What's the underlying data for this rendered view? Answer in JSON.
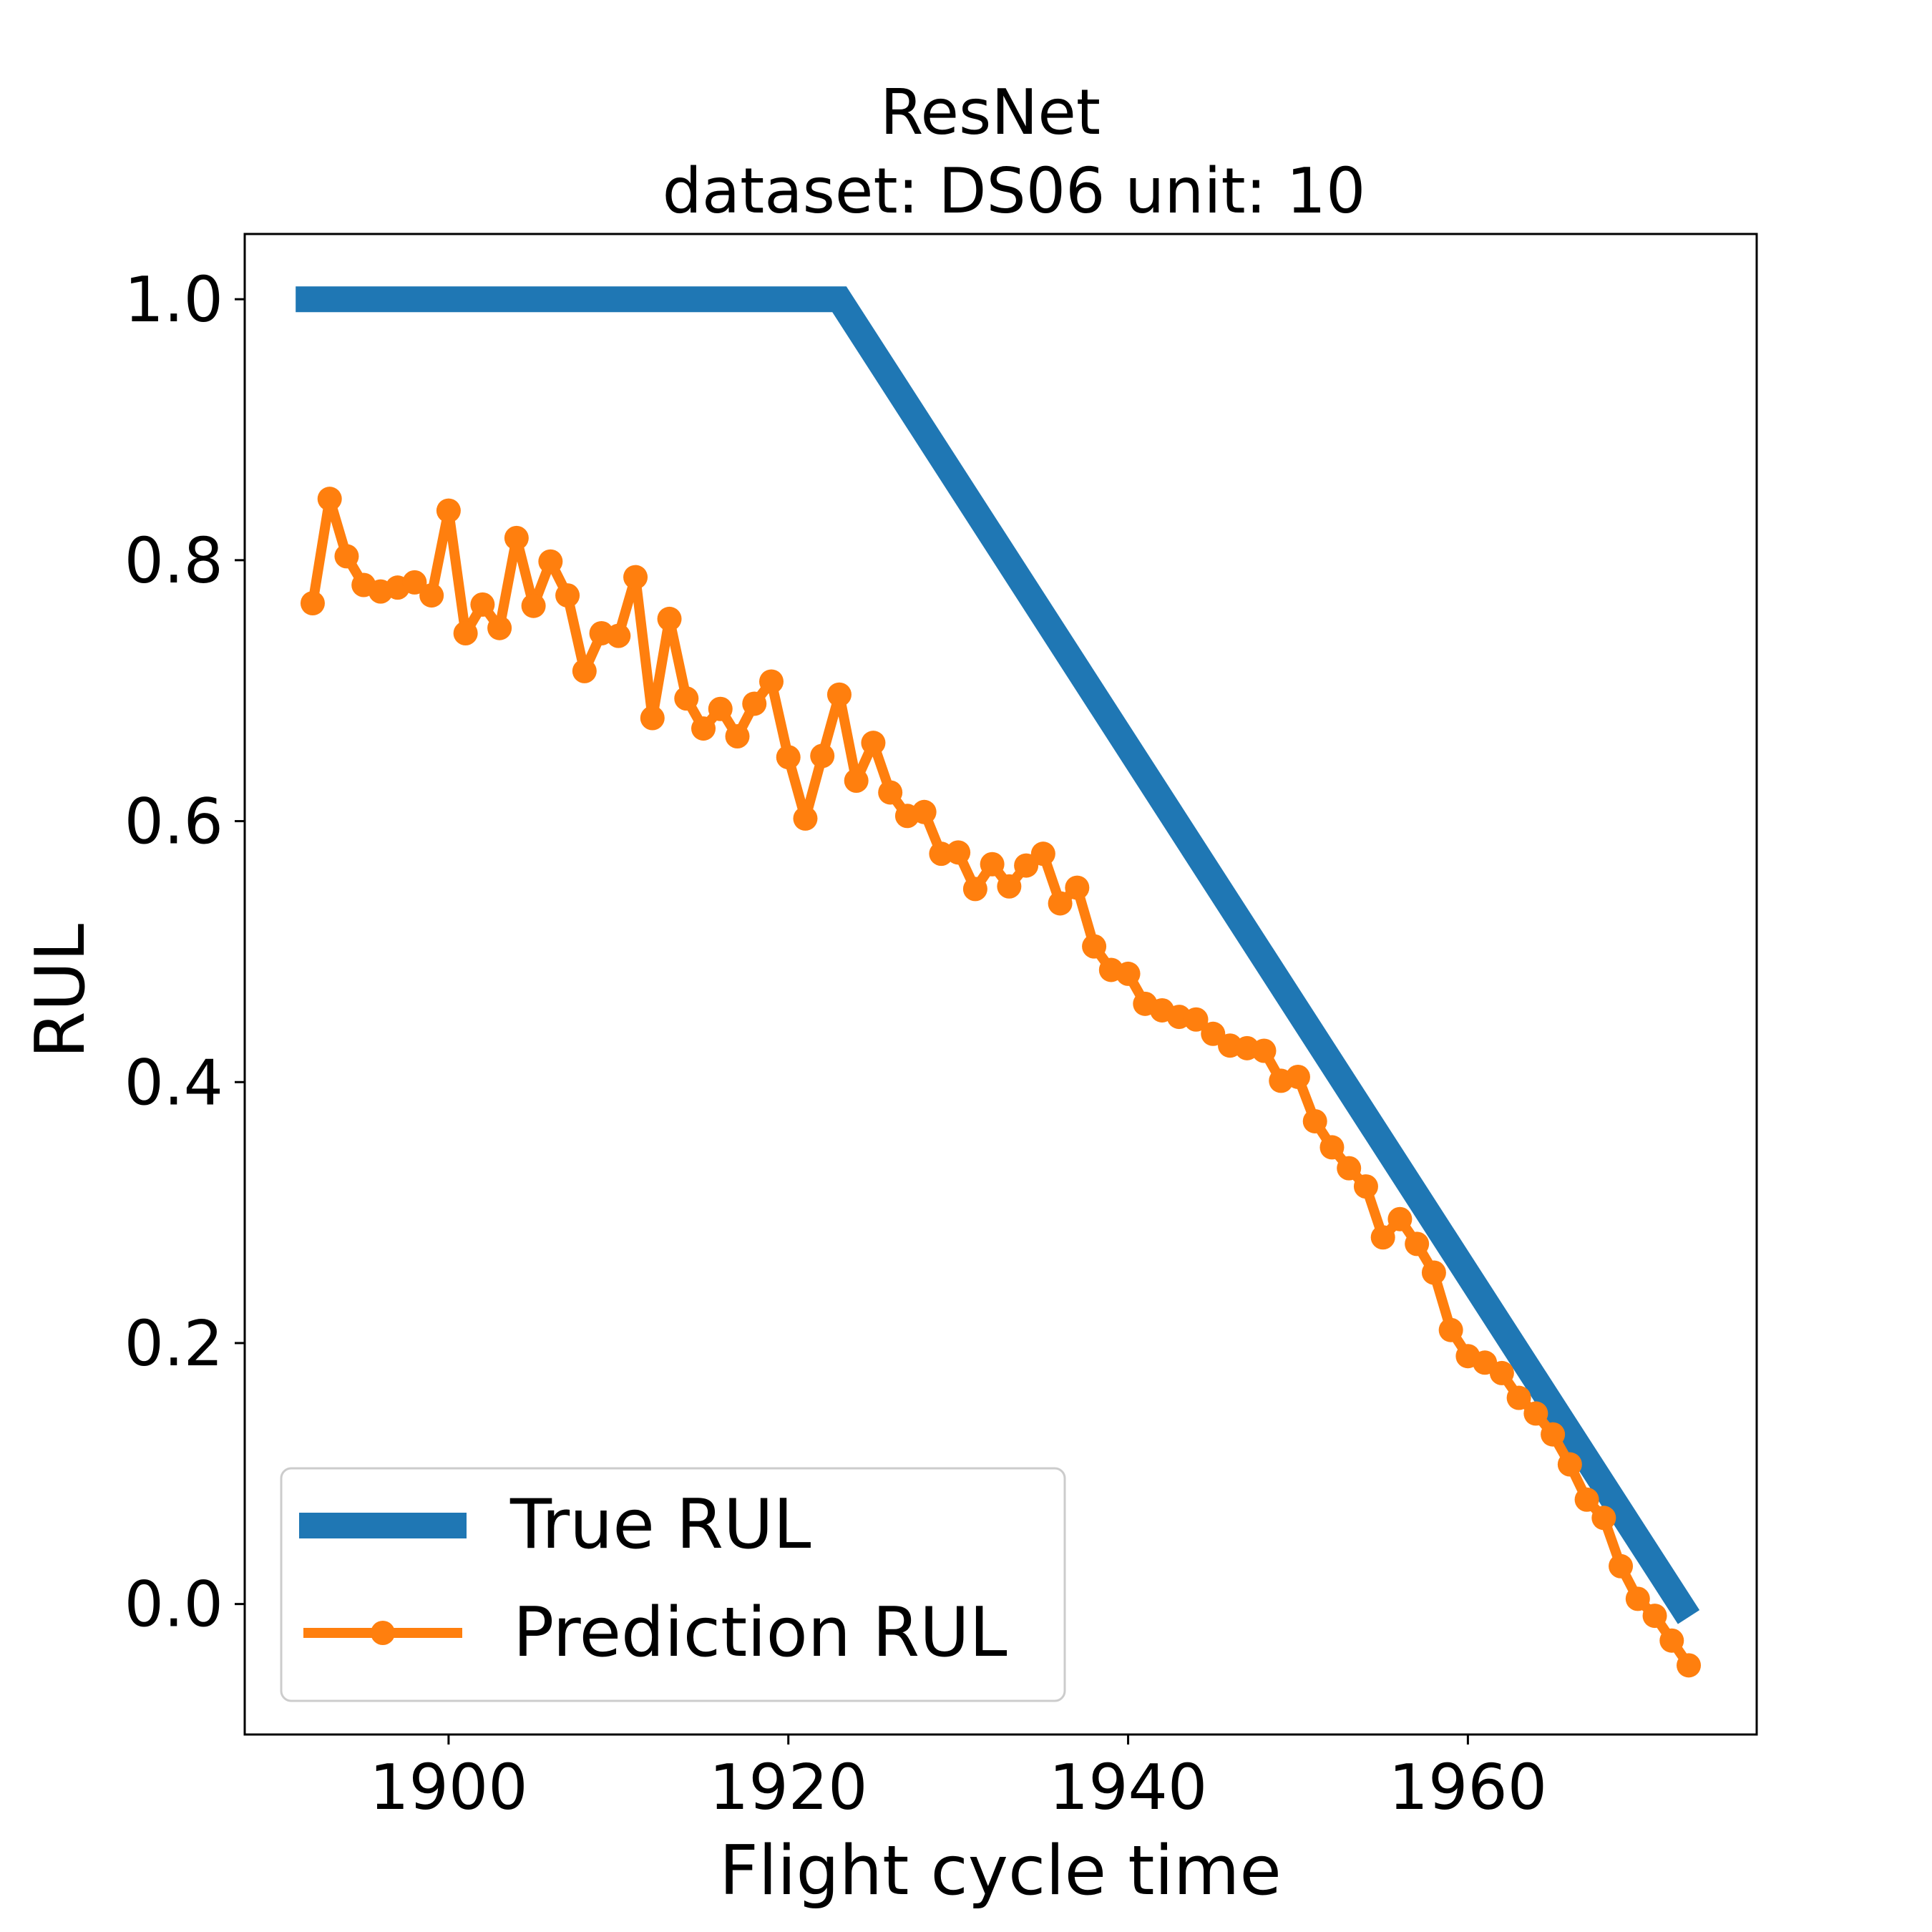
{
  "chart_data": {
    "type": "line",
    "title": "ResNet",
    "subtitle": "dataset: DS06 unit: 10",
    "xlabel": "Flight cycle time",
    "ylabel": "RUL",
    "xlim": [
      1888,
      1977
    ],
    "ylim": [
      -0.1,
      1.05
    ],
    "xticks": [
      1900,
      1920,
      1940,
      1960
    ],
    "xtick_labels": [
      "1900",
      "1920",
      "1940",
      "1960"
    ],
    "yticks": [
      0.0,
      0.2,
      0.4,
      0.6,
      0.8,
      1.0
    ],
    "ytick_labels": [
      "0.0",
      "0.2",
      "0.4",
      "0.6",
      "0.8",
      "1.0"
    ],
    "grid": false,
    "legend_position": "lower-left",
    "series": [
      {
        "name": "True RUL",
        "color": "#1f77b4",
        "marker": "none",
        "x": [
          1891,
          1923,
          1973
        ],
        "y": [
          1.0,
          1.0,
          -0.01
        ]
      },
      {
        "name": "Prediction RUL",
        "color": "#ff7f0e",
        "marker": "circle",
        "x": [
          1892,
          1893,
          1894,
          1895,
          1896,
          1897,
          1898,
          1899,
          1900,
          1901,
          1902,
          1903,
          1904,
          1905,
          1906,
          1907,
          1908,
          1909,
          1910,
          1911,
          1912,
          1913,
          1914,
          1915,
          1916,
          1917,
          1918,
          1919,
          1920,
          1921,
          1922,
          1923,
          1924,
          1925,
          1926,
          1927,
          1928,
          1929,
          1930,
          1931,
          1932,
          1933,
          1934,
          1935,
          1936,
          1937,
          1938,
          1939,
          1940,
          1941,
          1942,
          1943,
          1944,
          1945,
          1946,
          1947,
          1948,
          1949,
          1950,
          1951,
          1952,
          1953,
          1954,
          1955,
          1956,
          1957,
          1958,
          1959,
          1960,
          1961,
          1962,
          1963,
          1964,
          1965,
          1966,
          1967,
          1968,
          1969,
          1970,
          1971,
          1972,
          1973
        ],
        "y": [
          0.767,
          0.847,
          0.803,
          0.781,
          0.776,
          0.779,
          0.783,
          0.773,
          0.838,
          0.744,
          0.766,
          0.748,
          0.817,
          0.765,
          0.799,
          0.773,
          0.715,
          0.744,
          0.742,
          0.787,
          0.679,
          0.755,
          0.694,
          0.671,
          0.686,
          0.665,
          0.69,
          0.707,
          0.649,
          0.602,
          0.65,
          0.697,
          0.631,
          0.66,
          0.622,
          0.604,
          0.607,
          0.575,
          0.576,
          0.548,
          0.567,
          0.55,
          0.566,
          0.575,
          0.537,
          0.549,
          0.504,
          0.486,
          0.483,
          0.46,
          0.455,
          0.45,
          0.448,
          0.437,
          0.428,
          0.426,
          0.424,
          0.401,
          0.404,
          0.37,
          0.35,
          0.334,
          0.32,
          0.281,
          0.295,
          0.276,
          0.254,
          0.21,
          0.19,
          0.185,
          0.177,
          0.158,
          0.146,
          0.13,
          0.107,
          0.08,
          0.066,
          0.029,
          0.004,
          -0.009,
          -0.028,
          -0.047
        ]
      }
    ]
  }
}
